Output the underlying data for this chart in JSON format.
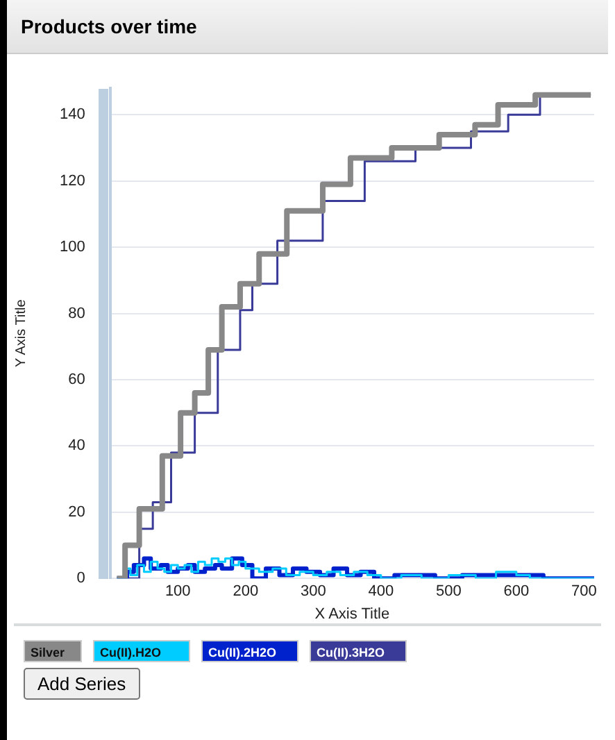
{
  "chart_data": {
    "type": "step",
    "title": "Products over time",
    "xlabel": "X Axis Title",
    "ylabel": "Y Axis Title",
    "xlim": [
      0,
      715
    ],
    "xticks": [
      100,
      200,
      300,
      400,
      500,
      600,
      700
    ],
    "ylim": [
      0,
      148
    ],
    "yticks": [
      0,
      20,
      40,
      60,
      80,
      100,
      120,
      140
    ],
    "grid": "y",
    "legend": "bottom",
    "marker": "none",
    "annotations": [
      "Add Series"
    ],
    "series": [
      {
        "name": "Silver",
        "color": "#888888",
        "x": [
          10,
          22,
          43,
          77,
          104,
          125,
          145,
          165,
          192,
          220,
          261,
          314,
          355,
          416,
          486,
          539,
          573,
          628,
          710
        ],
        "values": [
          0,
          10,
          21,
          37,
          50,
          56,
          69,
          82,
          89,
          98,
          111,
          119,
          127,
          130,
          134,
          137,
          143,
          146,
          146
        ]
      },
      {
        "name": "Cu(II).H2O",
        "color": "#00ccff",
        "x": [
          10,
          20,
          30,
          40,
          50,
          60,
          70,
          80,
          90,
          100,
          110,
          120,
          130,
          140,
          150,
          160,
          170,
          180,
          190,
          200,
          220,
          240,
          260,
          280,
          300,
          320,
          340,
          360,
          380,
          400,
          430,
          460,
          500,
          540,
          570,
          600,
          620,
          640,
          715
        ],
        "values": [
          0,
          3,
          1,
          4,
          2,
          5,
          3,
          2,
          4,
          3,
          4,
          2,
          5,
          4,
          6,
          5,
          6,
          4,
          5,
          3,
          2,
          3,
          1,
          2,
          1,
          2,
          1,
          2,
          1,
          0,
          1,
          0,
          1,
          0,
          2,
          1,
          0,
          0,
          0
        ]
      },
      {
        "name": "Cu(II).2H2O",
        "color": "#0022cc",
        "x": [
          10,
          25,
          35,
          50,
          60,
          75,
          85,
          100,
          115,
          125,
          140,
          155,
          165,
          180,
          195,
          210,
          230,
          250,
          270,
          290,
          310,
          330,
          350,
          370,
          390,
          420,
          450,
          480,
          520,
          560,
          590,
          620,
          640,
          715
        ],
        "values": [
          0,
          2,
          4,
          6,
          3,
          4,
          2,
          3,
          4,
          2,
          3,
          4,
          3,
          6,
          4,
          0,
          3,
          1,
          3,
          2,
          1,
          3,
          1,
          2,
          0,
          1,
          1,
          0,
          1,
          1,
          1,
          1,
          0,
          0
        ]
      },
      {
        "name": "Cu(II).3H2O",
        "color": "#3a3a99",
        "x": [
          10,
          22,
          43,
          63,
          90,
          125,
          159,
          192,
          210,
          247,
          314,
          376,
          451,
          533,
          588,
          635,
          710
        ],
        "values": [
          0,
          0,
          15,
          23,
          38,
          50,
          69,
          81,
          89,
          102,
          114,
          126,
          130,
          135,
          140,
          146,
          146
        ]
      }
    ]
  }
}
